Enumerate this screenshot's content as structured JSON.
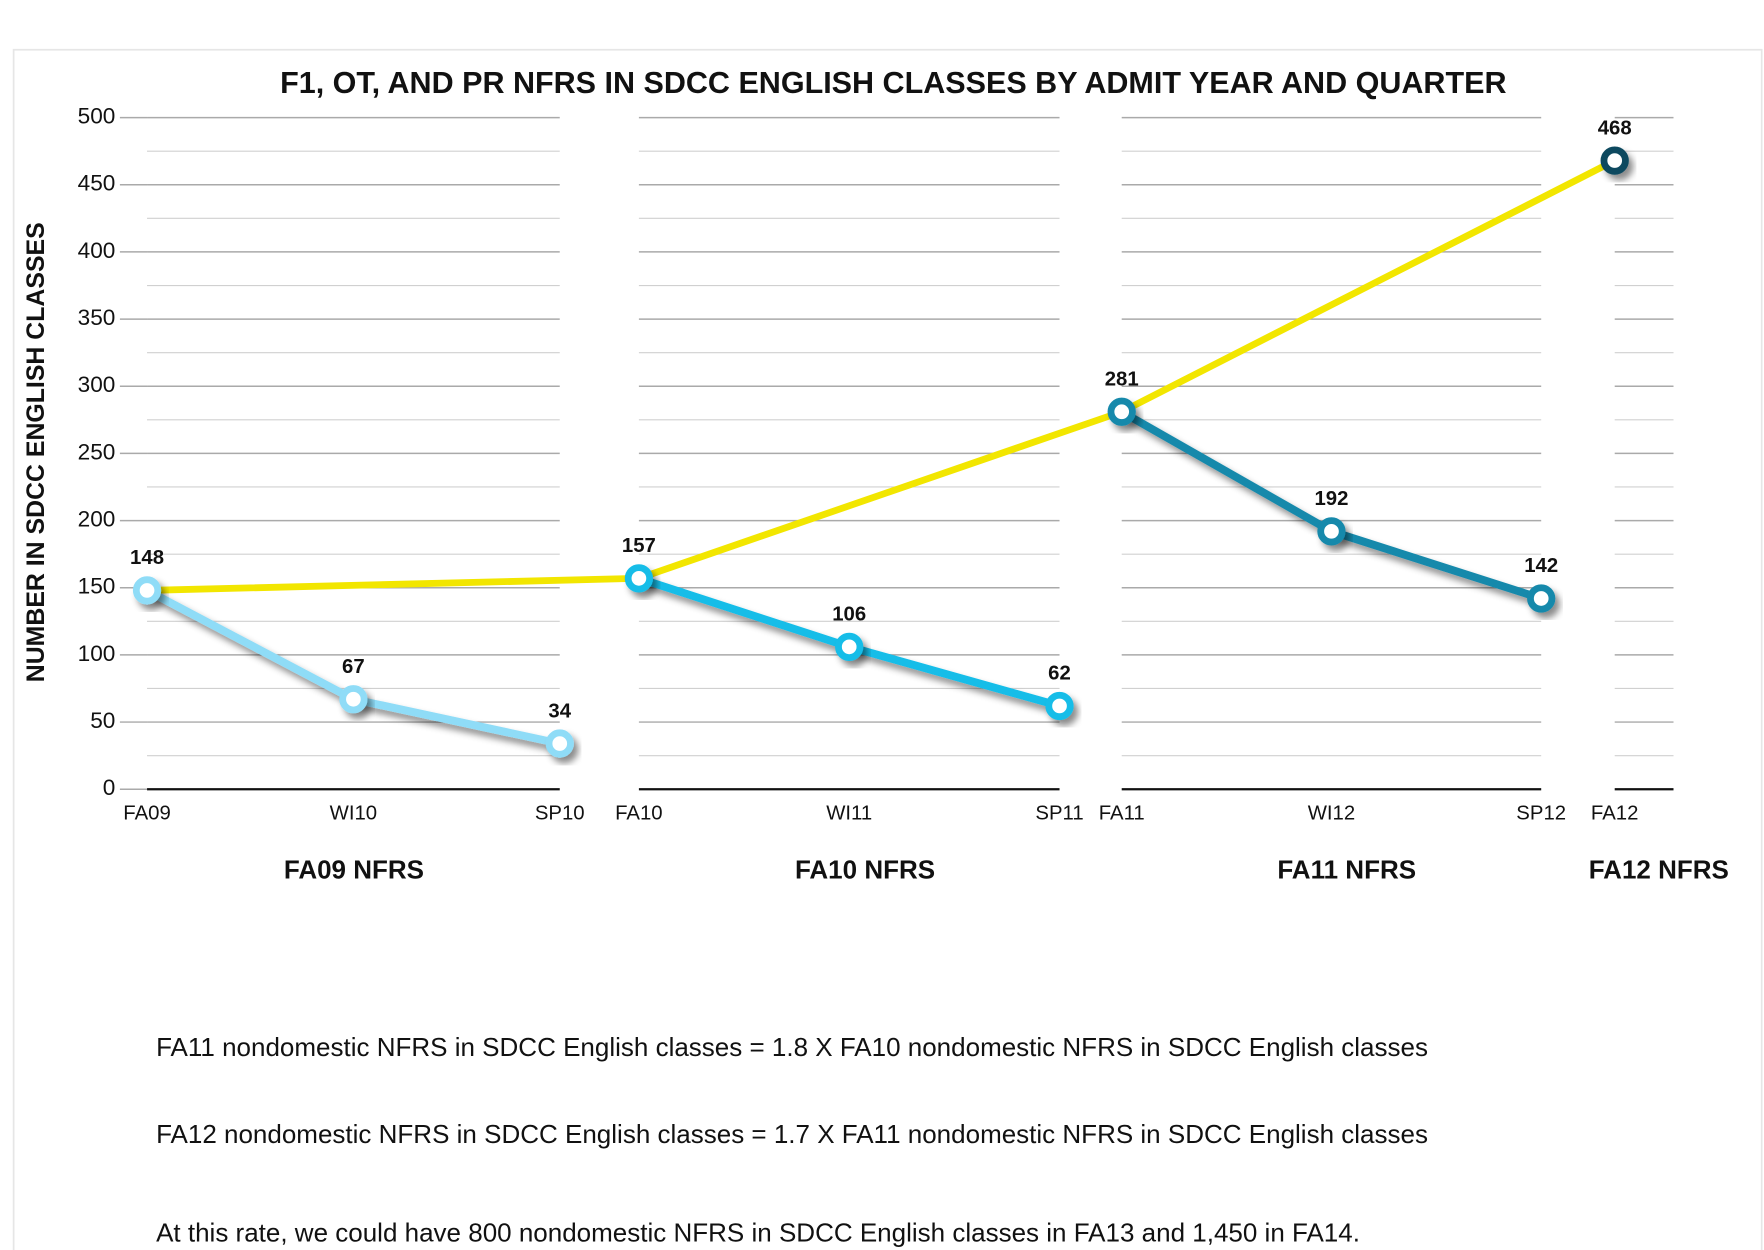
{
  "chart_data": {
    "type": "line",
    "title": "F1, OT, AND PR NFRS IN SDCC ENGLISH CLASSES BY ADMIT YEAR AND QUARTER",
    "y_label": "NUMBER IN SDCC ENGLISH CLASSES",
    "ylim": [
      0,
      500
    ],
    "yticks": [
      0,
      50,
      100,
      150,
      200,
      250,
      300,
      350,
      400,
      450,
      500
    ],
    "minor_yticks": [
      25,
      75,
      125,
      175,
      225,
      275,
      325,
      375,
      425,
      475
    ],
    "grid": true,
    "trend_color": "#f2e600",
    "panels": [
      {
        "name": "FA09 NFRS",
        "categories": [
          "FA09",
          "WI10",
          "SP10"
        ],
        "values": [
          148,
          67,
          34
        ],
        "color": "#8fdcf7"
      },
      {
        "name": "FA10 NFRS",
        "categories": [
          "FA10",
          "WI11",
          "SP11"
        ],
        "values": [
          157,
          106,
          62
        ],
        "color": "#12bde8"
      },
      {
        "name": "FA11 NFRS",
        "categories": [
          "FA11",
          "WI12",
          "SP12"
        ],
        "values": [
          281,
          192,
          142
        ],
        "color": "#1789ab"
      },
      {
        "name": "FA12 NFRS",
        "categories": [
          "FA12"
        ],
        "values": [
          468
        ],
        "color": "#0c4a5f"
      }
    ]
  },
  "notes": [
    "FA11 nondomestic NFRS in SDCC English classes = 1.8 X FA10 nondomestic NFRS in SDCC English classes",
    "FA12 nondomestic NFRS in SDCC English classes = 1.7 X FA11 nondomestic NFRS in SDCC English classes",
    "At this rate, we could have 800 nondomestic NFRS in SDCC English classes in FA13 and 1,450 in FA14."
  ]
}
